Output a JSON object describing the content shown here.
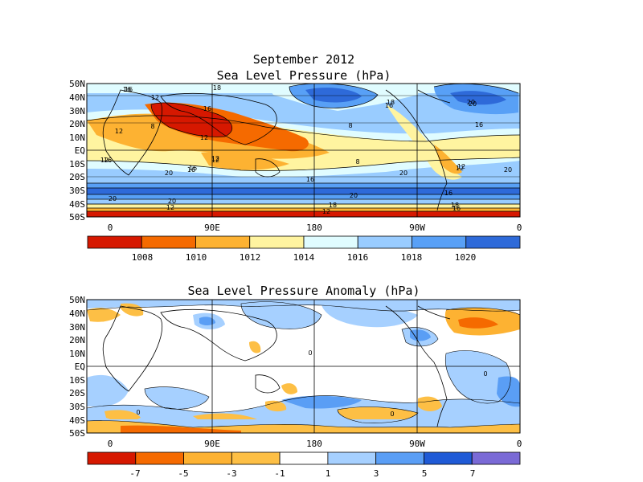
{
  "figure": {
    "title_line1": "September 2012",
    "title_line2": "Sea Level Pressure (hPa)"
  },
  "map_top": {
    "lat_labels": [
      "50N",
      "40N",
      "30N",
      "20N",
      "10N",
      "EQ",
      "10S",
      "20S",
      "30S",
      "40S",
      "50S"
    ],
    "lon_labels": [
      "0",
      "90E",
      "180",
      "90W",
      "0"
    ],
    "contour_labels": [
      "16",
      "12",
      "16",
      "18",
      "12",
      "8",
      "12",
      "16",
      "8",
      "8",
      "12",
      "16",
      "16",
      "12",
      "20",
      "16",
      "12",
      "16",
      "16",
      "16",
      "20",
      "20",
      "20",
      "20",
      "12",
      "20",
      "18",
      "12",
      "16",
      "12",
      "20",
      "18",
      "16",
      "18",
      "12",
      "20"
    ],
    "colorbar": {
      "colors": [
        "#d61800",
        "#f56a00",
        "#fdb232",
        "#fff4a0",
        "#e0fcff",
        "#99ccff",
        "#58a0f6",
        "#2e6ad9"
      ],
      "tick_labels": [
        "1008",
        "1010",
        "1012",
        "1014",
        "1016",
        "1018",
        "1020"
      ]
    }
  },
  "map_bottom": {
    "title": "Sea Level Pressure Anomaly (hPa)",
    "lat_labels": [
      "50N",
      "40N",
      "30N",
      "20N",
      "10N",
      "EQ",
      "10S",
      "20S",
      "30S",
      "40S",
      "50S"
    ],
    "lon_labels": [
      "0",
      "90E",
      "180",
      "90W",
      "0"
    ],
    "contour_labels": [
      "0",
      "0",
      "0",
      "0"
    ],
    "colorbar": {
      "colors": [
        "#d61800",
        "#f56a00",
        "#fdb232",
        "#fdbf45",
        "#ffffff",
        "#a6d0ff",
        "#5a9ef5",
        "#1f5ad6",
        "#7a6ad6"
      ],
      "tick_labels": [
        "-7",
        "-5",
        "-3",
        "-1",
        "1",
        "3",
        "5",
        "7"
      ]
    }
  }
}
